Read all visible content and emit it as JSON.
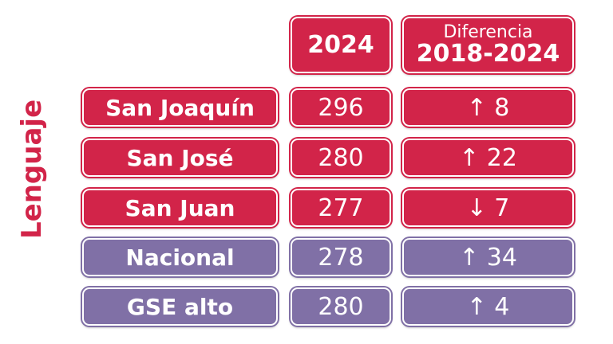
{
  "side_label": "Lenguaje",
  "header": {
    "year": "2024",
    "diff_top": "Diferencia",
    "diff_bottom": "2018-2024"
  },
  "rows": [
    {
      "name": "San Joaquín",
      "value": "296",
      "diff": "↑ 8",
      "color": "#d22449"
    },
    {
      "name": "San José",
      "value": "280",
      "diff": "↑ 22",
      "color": "#d22449"
    },
    {
      "name": "San Juan",
      "value": "277",
      "diff": "↓ 7",
      "color": "#d22449"
    },
    {
      "name": "Nacional",
      "value": "278",
      "diff": "↑ 34",
      "color": "#8070a6"
    },
    {
      "name": "GSE alto",
      "value": "280",
      "diff": "↑ 4",
      "color": "#8070a6"
    }
  ]
}
